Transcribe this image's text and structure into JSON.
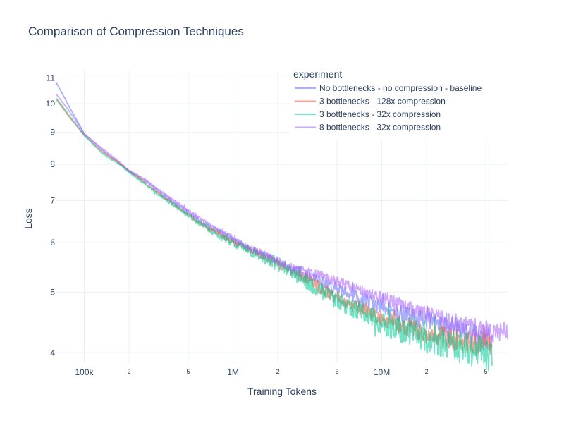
{
  "chart_data": {
    "type": "line",
    "title": "Comparison of Compression Techniques",
    "xlabel": "Training Tokens",
    "ylabel": "Loss",
    "xscale": "log",
    "yscale": "log",
    "xlim": [
      65000,
      70000000
    ],
    "ylim": [
      3.85,
      11.3
    ],
    "grid": true,
    "legend": {
      "title": "experiment",
      "position": "top-right"
    },
    "x_ticks": [
      {
        "value": 100000,
        "label": "100k",
        "major": true
      },
      {
        "value": 200000,
        "label": "2",
        "major": false
      },
      {
        "value": 500000,
        "label": "5",
        "major": false
      },
      {
        "value": 1000000,
        "label": "1M",
        "major": true
      },
      {
        "value": 2000000,
        "label": "2",
        "major": false
      },
      {
        "value": 5000000,
        "label": "5",
        "major": false
      },
      {
        "value": 10000000,
        "label": "10M",
        "major": true
      },
      {
        "value": 20000000,
        "label": "2",
        "major": false
      },
      {
        "value": 50000000,
        "label": "5",
        "major": false
      }
    ],
    "y_ticks": [
      {
        "value": 4,
        "label": "4"
      },
      {
        "value": 5,
        "label": "5"
      },
      {
        "value": 6,
        "label": "6"
      },
      {
        "value": 7,
        "label": "7"
      },
      {
        "value": 8,
        "label": "8"
      },
      {
        "value": 9,
        "label": "9"
      },
      {
        "value": 10,
        "label": "10"
      },
      {
        "value": 11,
        "label": "11"
      }
    ],
    "series": [
      {
        "name": "No bottlenecks - no compression - baseline",
        "color": "#636efa",
        "x": [
          65000,
          80000,
          100000,
          130000,
          170000,
          200000,
          250000,
          300000,
          400000,
          500000,
          600000,
          700000,
          800000,
          1000000,
          1200000,
          1500000,
          2000000,
          2500000,
          3000000,
          4000000,
          5000000,
          7000000,
          10000000,
          15000000,
          20000000,
          30000000,
          40000000,
          55000000
        ],
        "y": [
          10.8,
          9.85,
          8.95,
          8.45,
          8.05,
          7.8,
          7.55,
          7.3,
          6.95,
          6.7,
          6.5,
          6.35,
          6.25,
          6.05,
          5.92,
          5.78,
          5.6,
          5.45,
          5.35,
          5.18,
          5.05,
          4.88,
          4.72,
          4.58,
          4.5,
          4.38,
          4.3,
          4.22
        ],
        "noise": 0.012
      },
      {
        "name": "3 bottlenecks - 128x compression",
        "color": "#ef553b",
        "x": [
          65000,
          80000,
          100000,
          130000,
          170000,
          200000,
          250000,
          300000,
          400000,
          500000,
          600000,
          700000,
          800000,
          1000000,
          1200000,
          1500000,
          2000000,
          2500000,
          3000000,
          4000000,
          5000000,
          7000000,
          10000000,
          15000000,
          20000000,
          30000000,
          40000000,
          55000000
        ],
        "y": [
          10.15,
          9.5,
          8.9,
          8.4,
          8.05,
          7.8,
          7.5,
          7.25,
          6.9,
          6.65,
          6.45,
          6.3,
          6.2,
          6.0,
          5.9,
          5.75,
          5.55,
          5.4,
          5.28,
          5.05,
          4.9,
          4.72,
          4.55,
          4.4,
          4.3,
          4.2,
          4.15,
          4.1
        ],
        "noise": 0.012
      },
      {
        "name": "3 bottlenecks - 32x compression",
        "color": "#00cc96",
        "x": [
          65000,
          80000,
          100000,
          130000,
          170000,
          200000,
          250000,
          300000,
          400000,
          500000,
          600000,
          700000,
          800000,
          1000000,
          1200000,
          1500000,
          2000000,
          2500000,
          3000000,
          4000000,
          5000000,
          7000000,
          10000000,
          15000000,
          20000000,
          30000000,
          40000000,
          55000000
        ],
        "y": [
          10.2,
          9.55,
          8.9,
          8.35,
          8.0,
          7.78,
          7.48,
          7.22,
          6.88,
          6.62,
          6.42,
          6.28,
          6.15,
          5.98,
          5.88,
          5.7,
          5.52,
          5.36,
          5.22,
          5.0,
          4.85,
          4.65,
          4.45,
          4.3,
          4.2,
          4.12,
          4.05,
          4.0
        ],
        "noise": 0.016
      },
      {
        "name": "8 bottlenecks - 32x compression",
        "color": "#ab63fa",
        "x": [
          65000,
          80000,
          100000,
          130000,
          170000,
          200000,
          250000,
          300000,
          400000,
          500000,
          600000,
          700000,
          800000,
          1000000,
          1200000,
          1500000,
          2000000,
          2500000,
          3000000,
          4000000,
          5000000,
          7000000,
          10000000,
          15000000,
          20000000,
          30000000,
          40000000,
          55000000,
          70000000
        ],
        "y": [
          10.35,
          9.7,
          8.95,
          8.5,
          8.1,
          7.82,
          7.6,
          7.35,
          7.0,
          6.75,
          6.55,
          6.42,
          6.3,
          6.1,
          5.95,
          5.8,
          5.6,
          5.48,
          5.4,
          5.3,
          5.2,
          5.05,
          4.9,
          4.72,
          4.6,
          4.48,
          4.4,
          4.32,
          4.3
        ],
        "noise": 0.01
      }
    ]
  }
}
